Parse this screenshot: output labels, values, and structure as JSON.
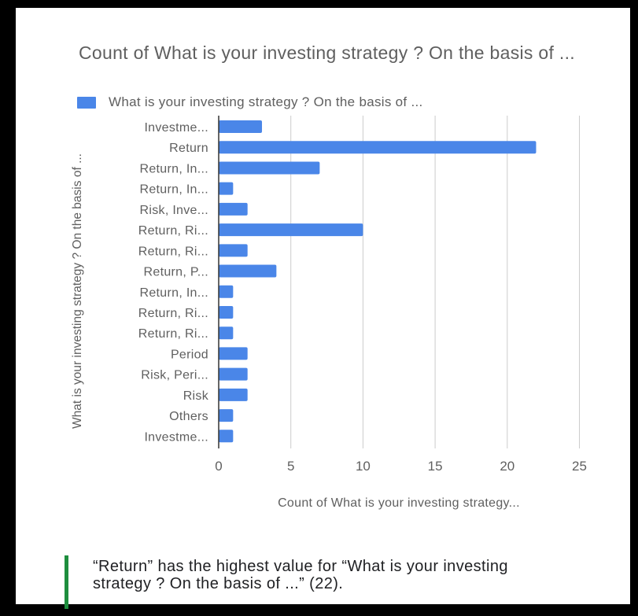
{
  "chart_data": {
    "type": "bar",
    "orientation": "horizontal",
    "title": "Count of What is your investing strategy ? On the basis of ...",
    "xlabel": "Count of What is your investing strategy...",
    "ylabel": "What is your investing strategy ? On the basis of ...",
    "categories": [
      "Investme...",
      "Return",
      "Return, In...",
      "Return, In...",
      "Risk, Inve...",
      "Return, Ri...",
      "Return, Ri...",
      "Return, P...",
      "Return, In...",
      "Return, Ri...",
      "Return, Ri...",
      "Period",
      "Risk, Peri...",
      "Risk",
      "Others",
      "Investme..."
    ],
    "series": [
      {
        "name": "What is your investing strategy ? On the basis of ...",
        "values": [
          3,
          22,
          7,
          1,
          2,
          10,
          2,
          4,
          1,
          1,
          1,
          2,
          2,
          2,
          1,
          1
        ]
      }
    ],
    "xlim": [
      0,
      25
    ],
    "xticks": [
      "0",
      "5",
      "10",
      "15",
      "20",
      "25"
    ],
    "grid": true,
    "legend": "top-left",
    "colors": {
      "bar": "#4a86e8",
      "grid": "#cccccc",
      "axis": "#333333",
      "text": "#5f5f5f"
    }
  },
  "insight": {
    "text": "“Return” has the highest value for “What is your investing strategy ? On the basis of ...” (22).",
    "accent_color": "#1e8e3e"
  }
}
